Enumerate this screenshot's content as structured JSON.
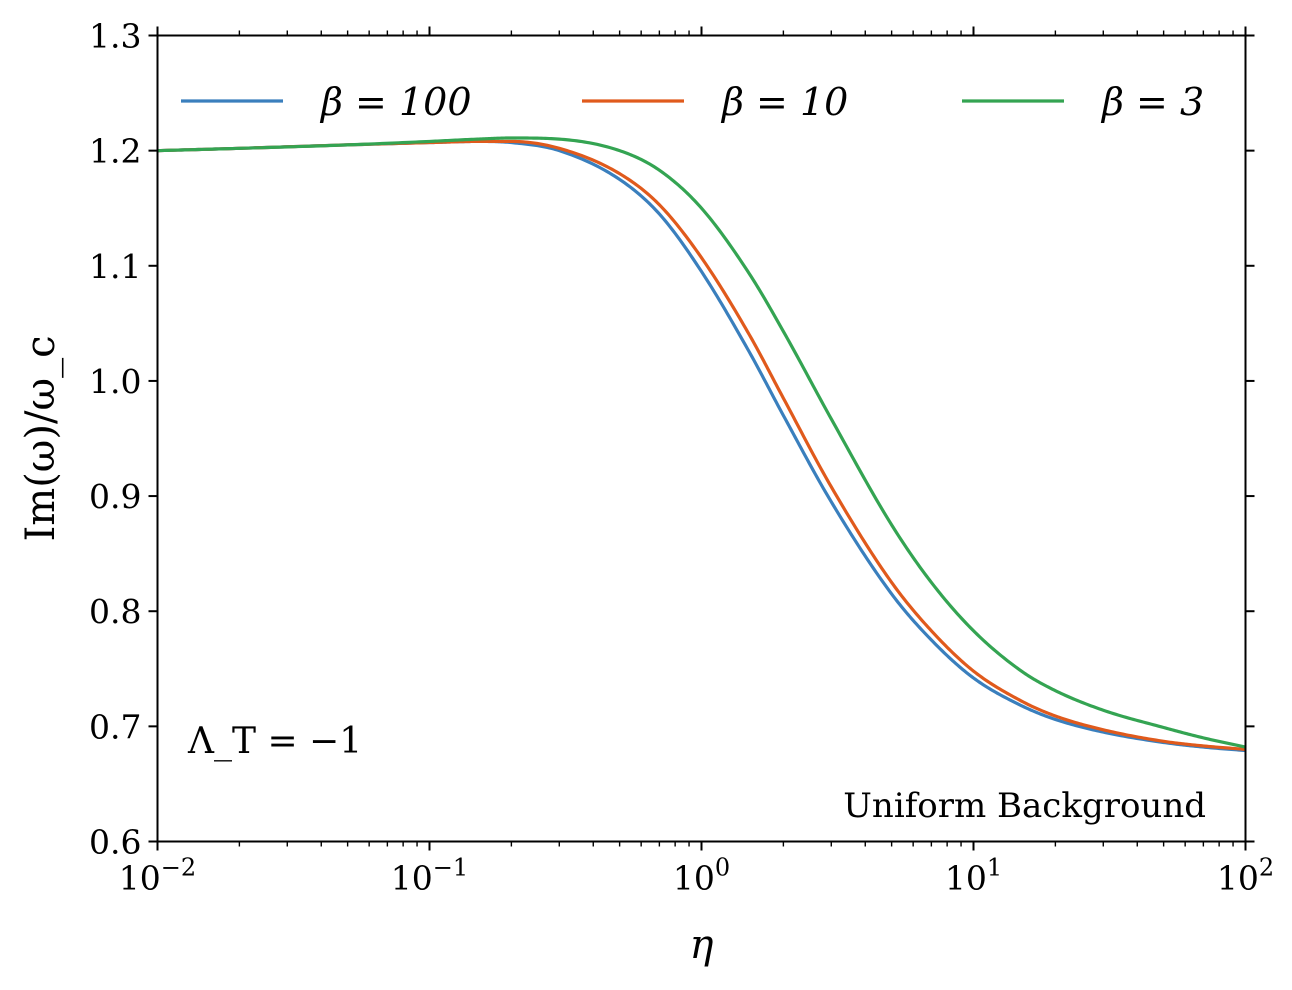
{
  "chart_data": {
    "type": "line",
    "title": "",
    "xlabel": "η",
    "ylabel": "Im(ω)/ω_c",
    "xscale": "log",
    "xlim": [
      0.01,
      100
    ],
    "ylim": [
      0.6,
      1.3
    ],
    "grid": false,
    "x_ticks": [
      {
        "value": 0.01,
        "base": "10",
        "exp": "−2"
      },
      {
        "value": 0.1,
        "base": "10",
        "exp": "−1"
      },
      {
        "value": 1,
        "base": "10",
        "exp": "0"
      },
      {
        "value": 10,
        "base": "10",
        "exp": "1"
      },
      {
        "value": 100,
        "base": "10",
        "exp": "2"
      }
    ],
    "y_ticks": [
      0.6,
      0.7,
      0.8,
      0.9,
      1.0,
      1.1,
      1.2,
      1.3
    ],
    "y_tick_labels": [
      "0.6",
      "0.7",
      "0.8",
      "0.9",
      "1.0",
      "1.1",
      "1.2",
      "1.3"
    ],
    "legend_position": "top",
    "series": [
      {
        "name": "β = 100",
        "color": "#3a7fbd",
        "x": [
          0.01,
          0.02,
          0.05,
          0.1,
          0.15,
          0.2,
          0.3,
          0.5,
          0.7,
          1.0,
          1.5,
          2.0,
          3.0,
          5.0,
          7.0,
          10,
          15,
          20,
          30,
          50,
          70,
          100
        ],
        "y": [
          1.2,
          1.202,
          1.205,
          1.207,
          1.208,
          1.207,
          1.2,
          1.175,
          1.145,
          1.095,
          1.025,
          0.97,
          0.895,
          0.815,
          0.775,
          0.742,
          0.718,
          0.706,
          0.695,
          0.686,
          0.682,
          0.679
        ]
      },
      {
        "name": "β = 10",
        "color": "#e05a1c",
        "x": [
          0.01,
          0.02,
          0.05,
          0.1,
          0.15,
          0.2,
          0.3,
          0.5,
          0.7,
          1.0,
          1.5,
          2.0,
          3.0,
          5.0,
          7.0,
          10,
          15,
          20,
          30,
          50,
          70,
          100
        ],
        "y": [
          1.2,
          1.202,
          1.205,
          1.207,
          1.208,
          1.208,
          1.202,
          1.18,
          1.153,
          1.107,
          1.04,
          0.985,
          0.908,
          0.825,
          0.783,
          0.748,
          0.722,
          0.709,
          0.697,
          0.687,
          0.683,
          0.68
        ]
      },
      {
        "name": "β = 3",
        "color": "#34a452",
        "x": [
          0.01,
          0.02,
          0.05,
          0.1,
          0.15,
          0.2,
          0.3,
          0.5,
          0.7,
          1.0,
          1.5,
          2.0,
          3.0,
          5.0,
          7.0,
          10,
          15,
          20,
          30,
          50,
          70,
          100
        ],
        "y": [
          1.2,
          1.202,
          1.205,
          1.208,
          1.21,
          1.211,
          1.21,
          1.2,
          1.183,
          1.15,
          1.093,
          1.043,
          0.967,
          0.875,
          0.825,
          0.783,
          0.748,
          0.731,
          0.714,
          0.699,
          0.69,
          0.682
        ]
      }
    ],
    "annotations": {
      "lambda_text": "Λ_T = −1",
      "background_text": "Uniform Background"
    }
  }
}
